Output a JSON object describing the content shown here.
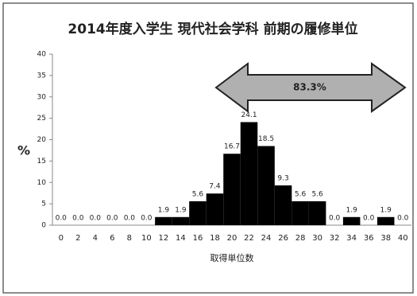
{
  "chart_data": {
    "type": "bar",
    "title": "2014年度入学生 現代社会学科 前期の履修単位",
    "y_label": "%",
    "x_label": "取得単位数",
    "annotation": "83.3%",
    "categories": [
      "0",
      "2",
      "4",
      "6",
      "8",
      "10",
      "12",
      "14",
      "16",
      "18",
      "20",
      "22",
      "24",
      "26",
      "28",
      "30",
      "32",
      "34",
      "36",
      "38",
      "40"
    ],
    "values": [
      0,
      0,
      0,
      0,
      0,
      0,
      1.9,
      1.9,
      5.6,
      7.4,
      16.7,
      24.1,
      18.5,
      9.3,
      5.6,
      5.6,
      0,
      1.9,
      0,
      1.9,
      0
    ],
    "value_labels": [
      "0.0",
      "0.0",
      "0.0",
      "0.0",
      "0.0",
      "0.0",
      "1.9",
      "1.9",
      "5.6",
      "7.4",
      "16.7",
      "24.1",
      "18.5",
      "9.3",
      "5.6",
      "5.6",
      "0.0",
      "1.9",
      "0.0",
      "1.9",
      "0.0"
    ],
    "color": "#000000",
    "ylim": [
      0,
      40
    ],
    "yticks": [
      0,
      5,
      10,
      15,
      20,
      25,
      30,
      35,
      40
    ],
    "grid": false
  }
}
